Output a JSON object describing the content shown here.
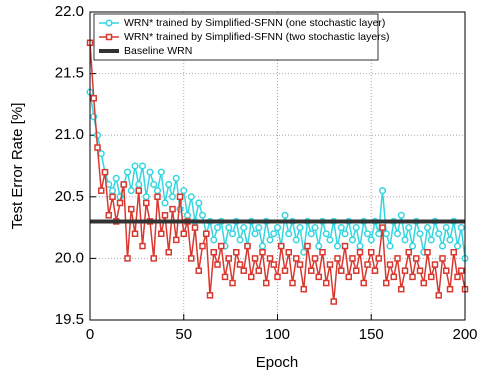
{
  "chart_data": {
    "type": "line",
    "xlabel": "Epoch",
    "ylabel": "Test Error Rate [%]",
    "xlim": [
      0,
      200
    ],
    "xticks": [
      0,
      50,
      100,
      150,
      200
    ],
    "ylim": [
      19.5,
      22.0
    ],
    "yticks": [
      19.5,
      {
        "value": 20.0,
        "label": "20.0"
      },
      20.5,
      {
        "value": 21.0,
        "label": "21.0"
      },
      21.5,
      {
        "value": 22.0,
        "label": "22.0"
      }
    ],
    "grid": true,
    "legend": "top",
    "x": [
      0,
      2,
      4,
      6,
      8,
      10,
      12,
      14,
      16,
      18,
      20,
      22,
      24,
      26,
      28,
      30,
      32,
      34,
      36,
      38,
      40,
      42,
      44,
      46,
      48,
      50,
      52,
      54,
      56,
      58,
      60,
      62,
      64,
      66,
      68,
      70,
      72,
      74,
      76,
      78,
      80,
      82,
      84,
      86,
      88,
      90,
      92,
      94,
      96,
      98,
      100,
      102,
      104,
      106,
      108,
      110,
      112,
      114,
      116,
      118,
      120,
      122,
      124,
      126,
      128,
      130,
      132,
      134,
      136,
      138,
      140,
      142,
      144,
      146,
      148,
      150,
      152,
      154,
      156,
      158,
      160,
      162,
      164,
      166,
      168,
      170,
      172,
      174,
      176,
      178,
      180,
      182,
      184,
      186,
      188,
      190,
      192,
      194,
      196,
      198,
      200
    ],
    "series": [
      {
        "name": "WRN* trained by Simplified-SFNN (one stochastic layer)",
        "color": "#33d6e0",
        "marker": "circle",
        "values": [
          21.35,
          21.15,
          21.0,
          20.85,
          20.7,
          20.6,
          20.55,
          20.65,
          20.5,
          20.6,
          20.7,
          20.55,
          20.75,
          20.6,
          20.75,
          20.5,
          20.7,
          20.6,
          20.55,
          20.7,
          20.45,
          20.6,
          20.5,
          20.65,
          20.4,
          20.55,
          20.35,
          20.5,
          20.3,
          20.45,
          20.35,
          20.2,
          20.3,
          20.15,
          20.25,
          20.3,
          20.1,
          20.25,
          20.2,
          20.3,
          20.15,
          20.25,
          20.1,
          20.3,
          20.2,
          20.25,
          20.1,
          20.3,
          20.15,
          20.2,
          20.25,
          20.1,
          20.35,
          20.2,
          20.3,
          20.15,
          20.25,
          20.05,
          20.3,
          20.2,
          20.25,
          20.1,
          20.3,
          20.2,
          20.15,
          20.3,
          20.1,
          20.25,
          20.2,
          20.3,
          20.15,
          20.25,
          20.1,
          20.3,
          20.2,
          20.15,
          20.3,
          20.2,
          20.55,
          20.2,
          20.1,
          20.3,
          20.2,
          20.35,
          20.15,
          20.25,
          20.1,
          20.3,
          20.2,
          20.05,
          20.25,
          20.15,
          20.3,
          20.2,
          20.1,
          20.25,
          20.15,
          20.3,
          20.1,
          20.25,
          20.0
        ]
      },
      {
        "name": "WRN* trained by Simplified-SFNN (two stochastic layers)",
        "color": "#d9382f",
        "marker": "square",
        "values": [
          21.75,
          21.3,
          20.9,
          20.55,
          20.7,
          20.35,
          20.5,
          20.3,
          20.45,
          20.6,
          20.0,
          20.4,
          20.2,
          20.55,
          20.1,
          20.45,
          20.3,
          20.0,
          20.5,
          20.2,
          20.35,
          20.05,
          20.4,
          20.15,
          20.5,
          20.2,
          20.3,
          20.0,
          20.25,
          19.9,
          20.1,
          20.2,
          19.7,
          20.05,
          19.95,
          20.1,
          19.85,
          20.0,
          19.8,
          20.05,
          19.95,
          19.9,
          20.1,
          19.85,
          20.0,
          19.9,
          20.05,
          19.8,
          20.0,
          19.95,
          19.85,
          20.1,
          19.9,
          20.05,
          19.8,
          20.0,
          19.95,
          19.75,
          20.1,
          19.9,
          20.0,
          19.85,
          20.05,
          19.8,
          19.95,
          19.65,
          20.0,
          19.9,
          20.1,
          19.85,
          20.0,
          19.9,
          20.05,
          19.8,
          19.95,
          20.05,
          19.9,
          20.0,
          20.25,
          19.8,
          19.95,
          19.85,
          20.0,
          19.75,
          19.9,
          20.05,
          19.85,
          20.0,
          19.9,
          19.8,
          20.05,
          19.85,
          19.95,
          19.7,
          20.0,
          19.9,
          19.75,
          20.05,
          19.85,
          19.9,
          19.75
        ]
      }
    ],
    "baseline": {
      "name": "Baseline WRN",
      "value": 20.3,
      "color": "#333333"
    }
  }
}
